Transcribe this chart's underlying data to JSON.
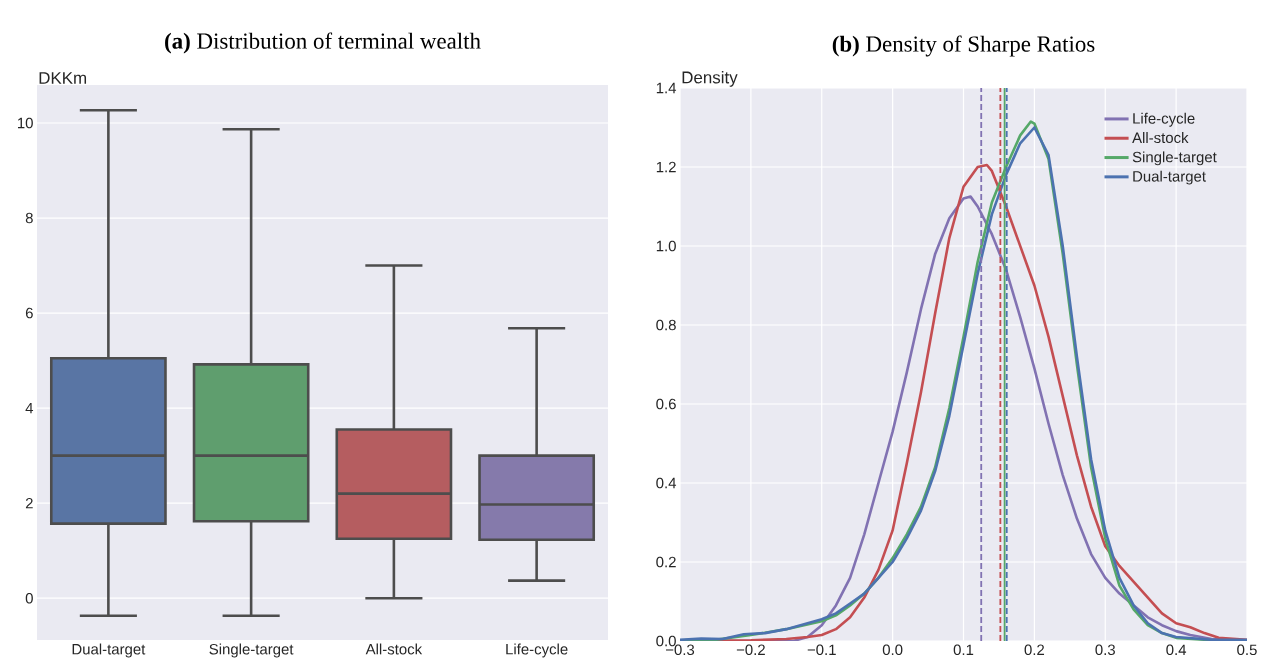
{
  "chart_data": [
    {
      "type": "box",
      "title": "**(a)** Distribution of terminal wealth",
      "ylabel": "DKKm",
      "categories": [
        "Dual-target",
        "Single-target",
        "All-stock",
        "Life-cycle"
      ],
      "boxes": [
        {
          "low": -0.37,
          "q1": 1.57,
          "median": 3.0,
          "q3": 5.05,
          "high": 10.27
        },
        {
          "low": -0.37,
          "q1": 1.62,
          "median": 3.0,
          "q3": 4.92,
          "high": 9.87
        },
        {
          "low": 0.0,
          "q1": 1.25,
          "median": 2.2,
          "q3": 3.55,
          "high": 7.0
        },
        {
          "low": 0.37,
          "q1": 1.23,
          "median": 1.97,
          "q3": 3.0,
          "high": 5.68
        }
      ],
      "colors": [
        "#5975a4",
        "#5f9e6e",
        "#b55d60",
        "#857aab"
      ],
      "ylim": [
        -0.88,
        10.8
      ],
      "yticks": [
        0,
        2,
        4,
        6,
        8,
        10
      ],
      "grid": "y"
    },
    {
      "type": "line",
      "title": "**(b)** Density of Sharpe Ratios",
      "ylabel": "Density",
      "xlim": [
        -0.3,
        0.5
      ],
      "xticks": [
        {
          "value": -0.3,
          "label": "−0.3"
        },
        {
          "value": -0.2,
          "label": "−0.2"
        },
        {
          "value": -0.1,
          "label": "−0.1"
        },
        {
          "value": 0,
          "label": "0.0"
        },
        0.1,
        0.2,
        0.3,
        0.4,
        0.5
      ],
      "ylim": [
        0,
        1.4
      ],
      "yticks": [
        {
          "value": 0,
          "label": "0.0"
        },
        0.2,
        0.4,
        0.6,
        0.8,
        {
          "value": 1,
          "label": "1.0"
        },
        1.2,
        1.4
      ],
      "grid": true,
      "legend": "top right",
      "series": [
        {
          "name": "Life-cycle",
          "color": "#8172b2",
          "x": [
            -0.3,
            -0.14,
            -0.12,
            -0.1,
            -0.08,
            -0.06,
            -0.04,
            -0.02,
            0.0,
            0.02,
            0.04,
            0.06,
            0.08,
            0.1,
            0.11,
            0.12,
            0.14,
            0.16,
            0.18,
            0.2,
            0.22,
            0.24,
            0.26,
            0.28,
            0.3,
            0.32,
            0.34,
            0.36,
            0.38,
            0.4,
            0.42,
            0.45,
            0.5
          ],
          "values": [
            0,
            0,
            0.01,
            0.04,
            0.09,
            0.16,
            0.27,
            0.4,
            0.53,
            0.68,
            0.84,
            0.98,
            1.07,
            1.12,
            1.125,
            1.1,
            1.03,
            0.94,
            0.82,
            0.69,
            0.55,
            0.42,
            0.31,
            0.22,
            0.16,
            0.12,
            0.09,
            0.06,
            0.04,
            0.025,
            0.015,
            0.005,
            0
          ]
        },
        {
          "name": "All-stock",
          "color": "#c44e52",
          "x": [
            -0.3,
            -0.2,
            -0.15,
            -0.12,
            -0.1,
            -0.08,
            -0.06,
            -0.04,
            -0.02,
            0.0,
            0.02,
            0.04,
            0.06,
            0.08,
            0.1,
            0.12,
            0.133,
            0.14,
            0.16,
            0.18,
            0.2,
            0.22,
            0.24,
            0.26,
            0.28,
            0.3,
            0.32,
            0.34,
            0.36,
            0.38,
            0.4,
            0.42,
            0.44,
            0.46,
            0.5
          ],
          "values": [
            0,
            0.002,
            0.005,
            0.01,
            0.015,
            0.03,
            0.06,
            0.11,
            0.18,
            0.28,
            0.45,
            0.63,
            0.83,
            1.02,
            1.15,
            1.2,
            1.205,
            1.19,
            1.1,
            1.0,
            0.9,
            0.77,
            0.62,
            0.47,
            0.34,
            0.24,
            0.19,
            0.15,
            0.11,
            0.07,
            0.045,
            0.035,
            0.02,
            0.008,
            0.003
          ]
        },
        {
          "name": "Single-target",
          "color": "#55a868",
          "x": [
            -0.3,
            -0.25,
            -0.2,
            -0.15,
            -0.1,
            -0.08,
            -0.06,
            -0.04,
            -0.02,
            0.0,
            0.02,
            0.04,
            0.06,
            0.08,
            0.1,
            0.12,
            0.14,
            0.16,
            0.18,
            0.195,
            0.2,
            0.22,
            0.24,
            0.26,
            0.28,
            0.3,
            0.32,
            0.34,
            0.36,
            0.38,
            0.4,
            0.45,
            0.5
          ],
          "values": [
            0.002,
            0.003,
            0.015,
            0.03,
            0.05,
            0.065,
            0.09,
            0.12,
            0.16,
            0.21,
            0.27,
            0.34,
            0.44,
            0.59,
            0.77,
            0.96,
            1.11,
            1.2,
            1.28,
            1.315,
            1.31,
            1.22,
            0.98,
            0.7,
            0.44,
            0.26,
            0.14,
            0.08,
            0.04,
            0.02,
            0.008,
            0.002,
            0
          ]
        },
        {
          "name": "Dual-target",
          "color": "#4c72b0",
          "x": [
            -0.3,
            -0.27,
            -0.24,
            -0.21,
            -0.18,
            -0.15,
            -0.12,
            -0.1,
            -0.08,
            -0.06,
            -0.04,
            -0.02,
            0.0,
            0.02,
            0.04,
            0.06,
            0.08,
            0.1,
            0.12,
            0.14,
            0.16,
            0.18,
            0.2,
            0.22,
            0.24,
            0.26,
            0.28,
            0.3,
            0.32,
            0.34,
            0.36,
            0.38,
            0.4,
            0.45,
            0.5
          ],
          "values": [
            0.003,
            0.006,
            0.005,
            0.017,
            0.02,
            0.03,
            0.045,
            0.055,
            0.07,
            0.095,
            0.12,
            0.16,
            0.2,
            0.26,
            0.33,
            0.43,
            0.57,
            0.75,
            0.93,
            1.08,
            1.18,
            1.26,
            1.3,
            1.23,
            1.0,
            0.72,
            0.46,
            0.28,
            0.16,
            0.09,
            0.045,
            0.02,
            0.01,
            0.003,
            0.003
          ]
        }
      ],
      "ref_lines": [
        {
          "axis": "x",
          "value": 0.125,
          "color": "#8172b2",
          "line_style": "dashed"
        },
        {
          "axis": "x",
          "value": 0.152,
          "color": "#c44e52",
          "line_style": "dashed"
        },
        {
          "axis": "x",
          "value": 0.158,
          "color": "#55a868",
          "line_style": "solid"
        },
        {
          "axis": "x",
          "value": 0.161,
          "color": "#4c72b0",
          "line_style": "dashed"
        }
      ]
    }
  ]
}
